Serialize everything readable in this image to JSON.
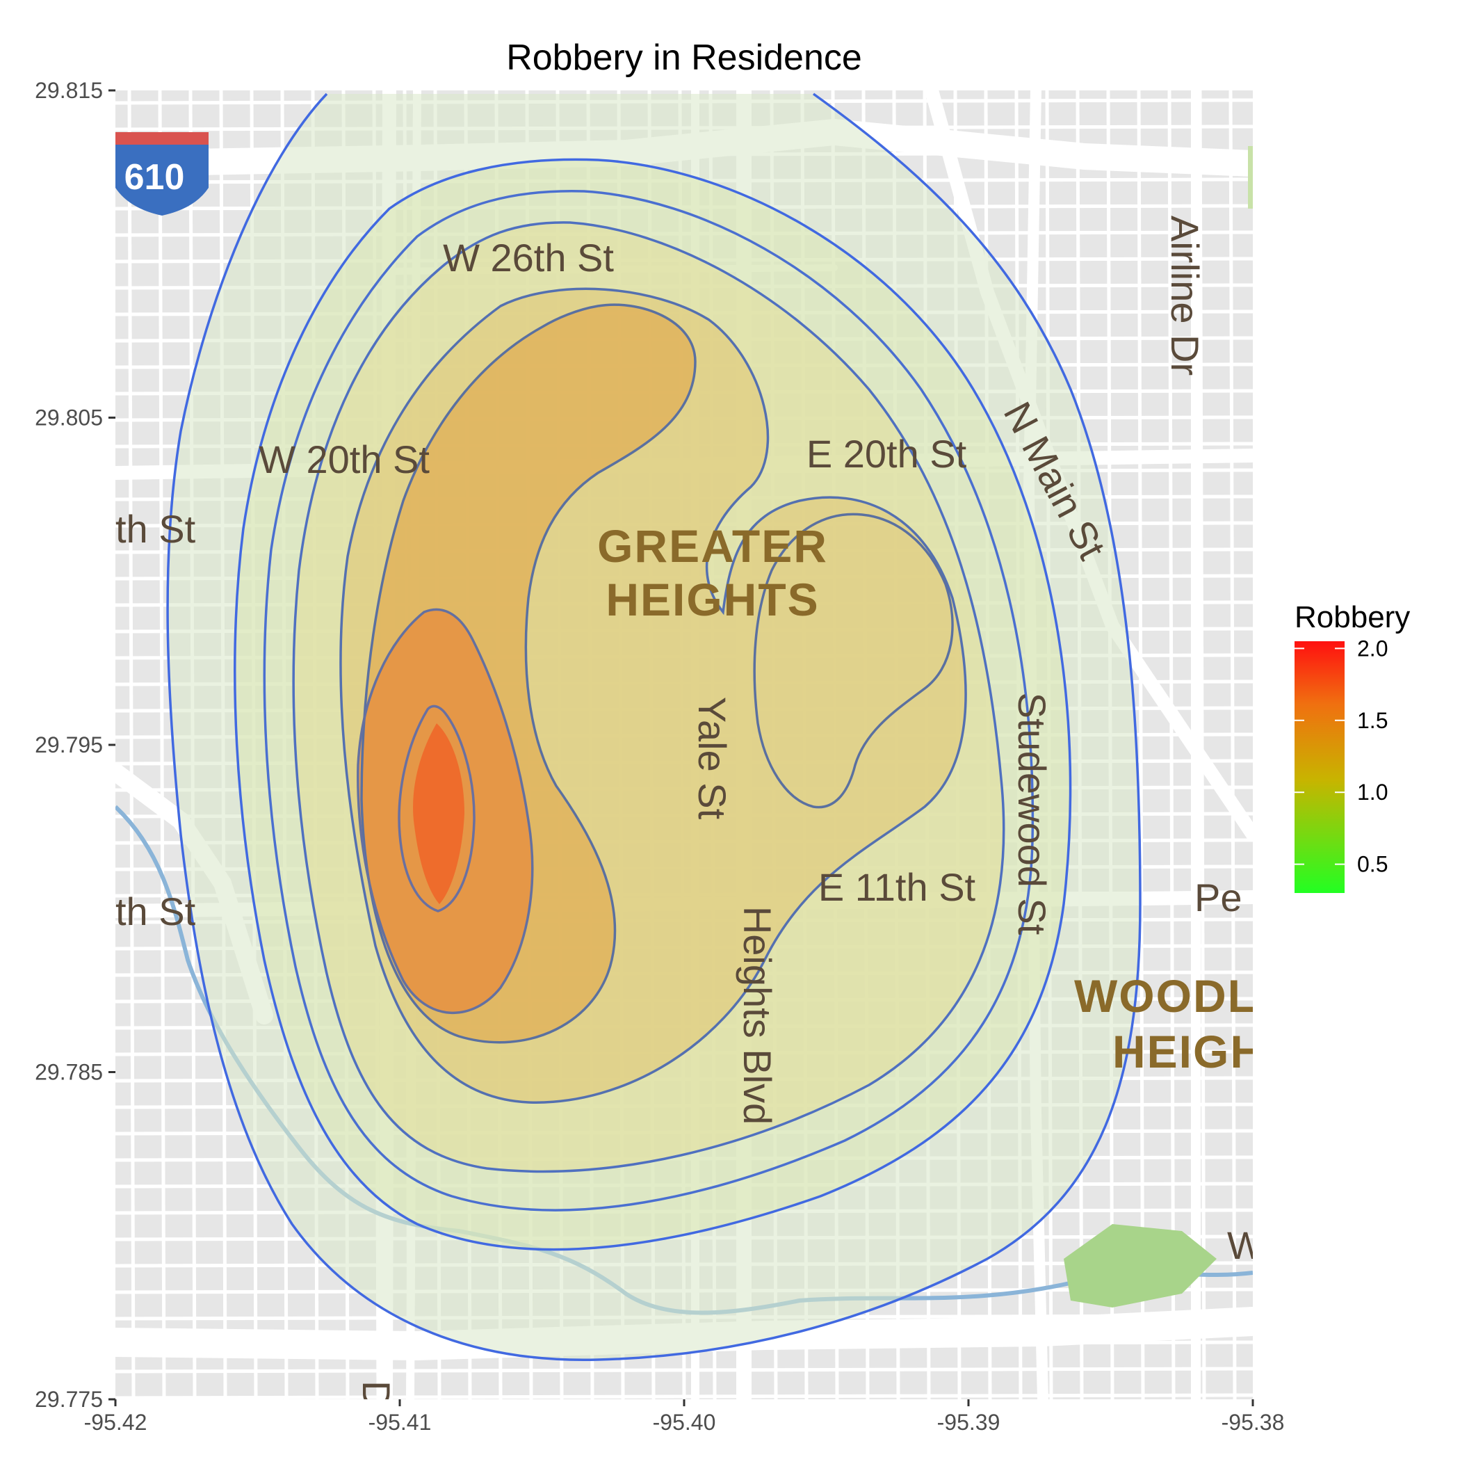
{
  "title": "Robbery in Residence",
  "colors": {
    "low": "#22ff22",
    "mid": "#c8b400",
    "high": "#ff1010",
    "contour": "#4169e1",
    "map_bg": "#e6e6e6",
    "road": "#ffffff"
  },
  "axes": {
    "x": {
      "min": -95.42,
      "max": -95.38,
      "ticks": [
        -95.42,
        -95.41,
        -95.4,
        -95.39,
        -95.38
      ],
      "tick_labels": [
        "-95.42",
        "-95.41",
        "-95.40",
        "-95.39",
        "-95.38"
      ]
    },
    "y": {
      "min": 29.775,
      "max": 29.815,
      "ticks": [
        29.775,
        29.785,
        29.795,
        29.805,
        29.815
      ],
      "tick_labels": [
        "29.775",
        "29.785",
        "29.795",
        "29.805",
        "29.815"
      ]
    }
  },
  "legend": {
    "title": "Robbery",
    "min": 0.3,
    "max": 2.05,
    "ticks": [
      0.5,
      1.0,
      1.5,
      2.0
    ],
    "tick_labels": [
      "0.5",
      "1.0",
      "1.5",
      "2.0"
    ]
  },
  "map_labels": {
    "highway": "610",
    "w26": "W 26th St",
    "w20": "W 20th St",
    "e20": "E 20th St",
    "th_st_1": "th St",
    "th_st_2": "th St",
    "greater": "GREATER",
    "heights": "HEIGHTS",
    "yale": "Yale St",
    "heights_blvd": "Heights Blvd",
    "e11": "E 11th St",
    "studewood": "Studewood St",
    "n_main": "N Main St",
    "airline": "Airline Dr",
    "woodl": "WOODL",
    "heigh": "HEIGH",
    "pe": "Pe",
    "w_edge": "W",
    "d_edge": "D"
  },
  "chart_data": {
    "type": "heatmap",
    "title": "Robbery in Residence",
    "xlim": [
      -95.42,
      -95.38
    ],
    "ylim": [
      29.775,
      29.815
    ],
    "legend_title": "Robbery",
    "legend_range": [
      0.3,
      2.05
    ],
    "density_peaks": [
      {
        "lon": -95.4085,
        "lat": 29.7935,
        "value": 2.0
      },
      {
        "lon": -95.403,
        "lat": 29.806,
        "value": 1.3
      },
      {
        "lon": -95.393,
        "lat": 29.798,
        "value": 1.25
      }
    ],
    "contour_levels": [
      0.3,
      0.5,
      0.7,
      0.9,
      1.1,
      1.3,
      1.6,
      1.9
    ]
  }
}
